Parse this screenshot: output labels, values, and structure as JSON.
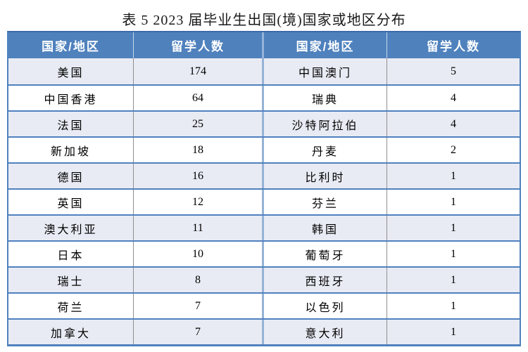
{
  "page": {
    "title": "表 5  2023 届毕业生出国(境)国家或地区分布"
  },
  "colors": {
    "header_bg": "#4F81BD",
    "header_top_border": "#3A6BA8",
    "header_text": "#FFFFFF",
    "grid_blue": "#4F81BD",
    "divider_gray": "#8F8F8F",
    "mid_divider": "#95B3D7",
    "row_alt_bg": "#E9EBF4",
    "row_bg": "#FFFFFF"
  },
  "table": {
    "headers": [
      "国家/地区",
      "留学人数",
      "国家/地区",
      "留学人数"
    ],
    "rows": [
      [
        "美国",
        "174",
        "中国澳门",
        "5"
      ],
      [
        "中国香港",
        "64",
        "瑞典",
        "4"
      ],
      [
        "法国",
        "25",
        "沙特阿拉伯",
        "4"
      ],
      [
        "新加坡",
        "18",
        "丹麦",
        "2"
      ],
      [
        "德国",
        "16",
        "比利时",
        "1"
      ],
      [
        "英国",
        "12",
        "芬兰",
        "1"
      ],
      [
        "澳大利亚",
        "11",
        "韩国",
        "1"
      ],
      [
        "日本",
        "10",
        "葡萄牙",
        "1"
      ],
      [
        "瑞士",
        "8",
        "西班牙",
        "1"
      ],
      [
        "荷兰",
        "7",
        "以色列",
        "1"
      ],
      [
        "加拿大",
        "7",
        "意大利",
        "1"
      ]
    ]
  }
}
